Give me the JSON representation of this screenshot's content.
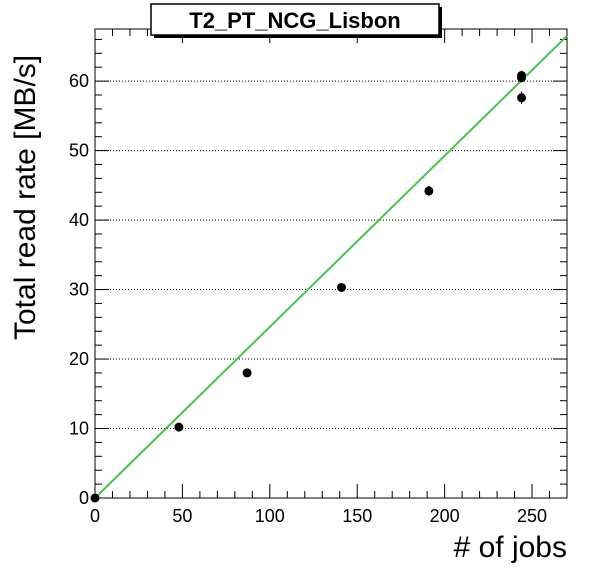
{
  "chart_data": {
    "type": "scatter",
    "title": "T2_PT_NCG_Lisbon",
    "xlabel": "# of jobs",
    "ylabel": "Total read rate [MB/s]",
    "xlim": [
      0,
      270
    ],
    "ylim": [
      0,
      67.5
    ],
    "x_ticks": [
      0,
      50,
      100,
      150,
      200,
      250
    ],
    "y_ticks": [
      0,
      10,
      20,
      30,
      40,
      50,
      60
    ],
    "grid": "horizontal dotted",
    "colors": {
      "points": "#000000",
      "fit_line": "#4cc04c"
    },
    "series": [
      {
        "x": [
          0,
          48,
          87,
          141,
          191,
          244,
          244,
          244
        ],
        "y": [
          0,
          10.2,
          18.0,
          30.3,
          44.2,
          60.5,
          60.8,
          57.6
        ],
        "yerr": [
          0.2,
          0.4,
          0.4,
          0.5,
          0.7,
          0.7,
          0.7,
          0.9
        ]
      }
    ],
    "fit_line": {
      "x": [
        0,
        270
      ],
      "y": [
        0,
        66.5
      ]
    }
  }
}
